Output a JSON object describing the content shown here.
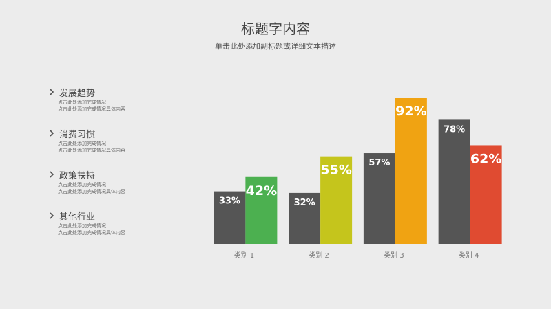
{
  "header": {
    "title": "标题字内容",
    "subtitle": "单击此处添加副标题或详细文本描述"
  },
  "sidebar": {
    "items": [
      {
        "title": "发展趋势",
        "lines": [
          "点击此处添加完成情况",
          "点击此处添加完成情况具体内容"
        ]
      },
      {
        "title": "消费习惯",
        "lines": [
          "点击此处添加完成情况",
          "点击此处添加完成情况具体内容"
        ]
      },
      {
        "title": "政策扶持",
        "lines": [
          "点击此处添加完成情况",
          "点击此处添加完成情况具体内容"
        ]
      },
      {
        "title": "其他行业",
        "lines": [
          "点击此处添加完成情况",
          "点击此处添加完成情况具体内容"
        ]
      }
    ]
  },
  "chart_data": {
    "type": "bar",
    "categories": [
      "类别 1",
      "类别 2",
      "类别 3",
      "类别 4"
    ],
    "series": [
      {
        "values": [
          33,
          32,
          57,
          78
        ],
        "labels": [
          "33%",
          "32%",
          "57%",
          "78%"
        ],
        "color": "#555555"
      },
      {
        "values": [
          42,
          55,
          92,
          62
        ],
        "labels": [
          "42%",
          "55%",
          "92%",
          "62%"
        ],
        "colors": [
          "#4cb050",
          "#c5c51c",
          "#f0a312",
          "#e04b31"
        ]
      }
    ],
    "ylim": [
      0,
      100
    ],
    "grid": false,
    "legend": "none"
  }
}
